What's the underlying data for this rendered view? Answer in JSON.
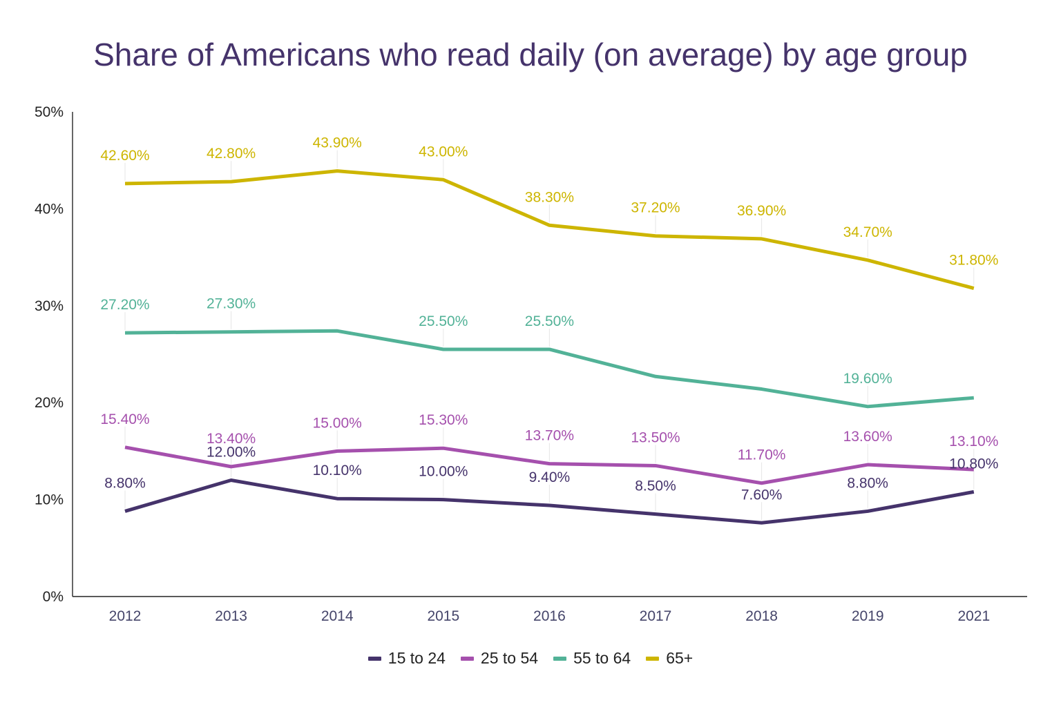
{
  "chart_data": {
    "type": "line",
    "title": "Share of Americans who read daily (on average) by age group",
    "xlabel": "",
    "ylabel": "",
    "categories": [
      "2012",
      "2013",
      "2014",
      "2015",
      "2016",
      "2017",
      "2018",
      "2019",
      "2021"
    ],
    "ylim": [
      0,
      50
    ],
    "yticks": [
      0,
      10,
      20,
      30,
      40,
      50
    ],
    "ytick_labels": [
      "0%",
      "10%",
      "20%",
      "30%",
      "40%",
      "50%"
    ],
    "grid": false,
    "legend_position": "bottom",
    "series": [
      {
        "name": "15 to 24",
        "color": "#45336b",
        "values": [
          8.8,
          12.0,
          10.1,
          10.0,
          9.4,
          8.5,
          7.6,
          8.8,
          10.8
        ],
        "labels": [
          "8.80%",
          "12.00%",
          "10.10%",
          "10.00%",
          "9.40%",
          "8.50%",
          "7.60%",
          "8.80%",
          "10.80%"
        ]
      },
      {
        "name": "25 to 54",
        "color": "#a550ad",
        "values": [
          15.4,
          13.4,
          15.0,
          15.3,
          13.7,
          13.5,
          11.7,
          13.6,
          13.1
        ],
        "labels": [
          "15.40%",
          "13.40%",
          "15.00%",
          "15.30%",
          "13.70%",
          "13.50%",
          "11.70%",
          "13.60%",
          "13.10%"
        ]
      },
      {
        "name": "55 to 64",
        "color": "#52b297",
        "values": [
          27.2,
          27.3,
          27.4,
          25.5,
          25.5,
          22.7,
          21.4,
          19.6,
          20.5
        ],
        "labels": [
          "27.20%",
          "27.30%",
          "",
          "25.50%",
          "25.50%",
          "",
          "",
          "19.60%",
          ""
        ]
      },
      {
        "name": "65+",
        "color": "#cdb500",
        "values": [
          42.6,
          42.8,
          43.9,
          43.0,
          38.3,
          37.2,
          36.9,
          34.7,
          31.8
        ],
        "labels": [
          "42.60%",
          "42.80%",
          "43.90%",
          "43.00%",
          "38.30%",
          "37.20%",
          "36.90%",
          "34.70%",
          "31.80%"
        ]
      }
    ]
  }
}
